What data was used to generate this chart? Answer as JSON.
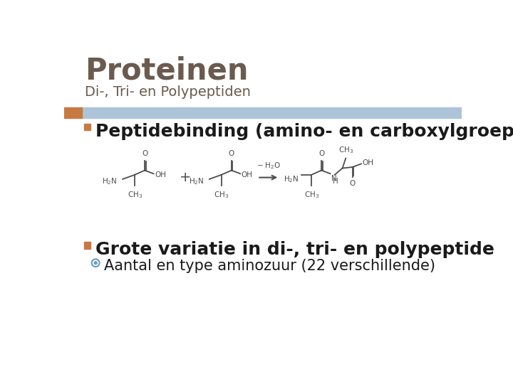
{
  "title": "Proteinen",
  "subtitle": "Di-, Tri- en Polypeptiden",
  "title_color": "#6b5b4e",
  "subtitle_color": "#6b5b4e",
  "background_color": "#ffffff",
  "header_bar_color": "#adc4d8",
  "header_bar_left_color": "#c87941",
  "bullet_color": "#c87941",
  "bullet1_text": "Peptidebinding (amino- en carboxylgroep)",
  "bullet2_text": "Grote variatie in di-, tri- en polypeptide",
  "subbullet_color": "#6a9abf",
  "subbullet_text": "Aantal en type aminozuur (22 verschillende)",
  "text_color": "#1a1a1a",
  "chem_color": "#4d4d4d",
  "bullet_fontsize": 18,
  "subbullet_fontsize": 15,
  "title_fontsize": 30,
  "subtitle_fontsize": 14
}
